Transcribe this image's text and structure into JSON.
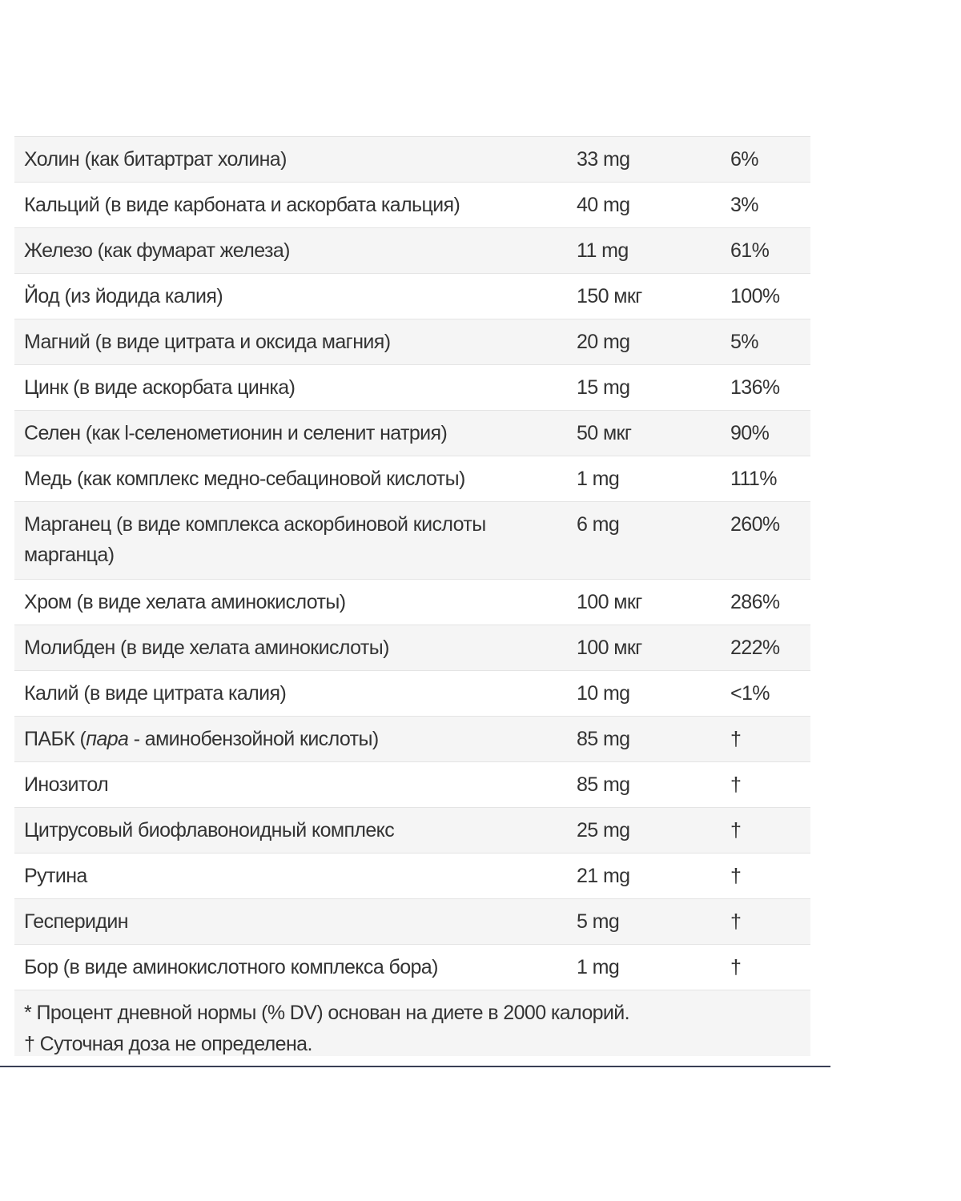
{
  "rows": [
    {
      "name": "Холин (как битартрат холина)",
      "amount": "33 mg",
      "dv": "6%"
    },
    {
      "name": "Кальций (в виде карбоната и аскорбата кальция)",
      "amount": "40 mg",
      "dv": "3%"
    },
    {
      "name": "Железо (как фумарат железа)",
      "amount": "11 mg",
      "dv": "61%"
    },
    {
      "name": "Йод (из йодида калия)",
      "amount": "150 мкг",
      "dv": "100%"
    },
    {
      "name": "Магний (в виде цитрата и оксида магния)",
      "amount": "20 mg",
      "dv": "5%"
    },
    {
      "name": "Цинк (в виде аскорбата цинка)",
      "amount": "15 mg",
      "dv": "136%"
    },
    {
      "name": "Селен (как l-селенометионин и селенит натрия)",
      "amount": "50 мкг",
      "dv": "90%"
    },
    {
      "name": "Медь (как комплекс медно-себациновой кислоты)",
      "amount": "1 mg",
      "dv": "111%"
    },
    {
      "name": "Марганец (в виде комплекса аскорбиновой кислоты марганца)",
      "amount": "6 mg",
      "dv": "260%"
    },
    {
      "name": "Хром (в виде хелата аминокислоты)",
      "amount": "100 мкг",
      "dv": "286%"
    },
    {
      "name": "Молибден (в виде хелата аминокислоты)",
      "amount": "100 мкг",
      "dv": "222%"
    },
    {
      "name": "Калий (в виде цитрата калия)",
      "amount": "10 mg",
      "dv": "<1%"
    },
    {
      "name_prefix": "ПАБК (",
      "name_italic": "пара",
      "name_suffix": " - аминобензойной кислоты)",
      "amount": "85 mg",
      "dv": "†"
    },
    {
      "name": "Инозитол",
      "amount": "85 mg",
      "dv": "†"
    },
    {
      "name": "Цитрусовый биофлавоноидный комплекс",
      "amount": "25 mg",
      "dv": "†"
    },
    {
      "name": "Рутина",
      "amount": "21 mg",
      "dv": "†"
    },
    {
      "name": "Гесперидин",
      "amount": "5 mg",
      "dv": "†"
    },
    {
      "name": "Бор (в виде аминокислотного комплекса бора)",
      "amount": "1 mg",
      "dv": "†"
    }
  ],
  "footnotes": {
    "dv_note": "* Процент дневной нормы (% DV) основан на диете в 2000 калорий.",
    "dagger_note": "† Суточная доза не определена."
  }
}
